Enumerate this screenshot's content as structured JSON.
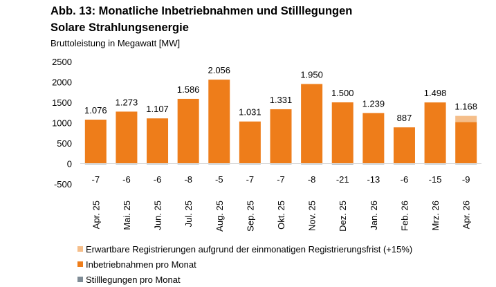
{
  "header": {
    "title_line1": "Abb. 13: Monatliche Inbetriebnahmen und Stilllegungen",
    "title_line2": "Solare Strahlungsenergie",
    "subtitle": "Bruttoleistung in Megawatt [MW]"
  },
  "chart_data": {
    "type": "bar",
    "title": "Abb. 13: Monatliche Inbetriebnahmen und Stilllegungen Solare Strahlungsenergie",
    "ylabel": "Bruttoleistung in Megawatt [MW]",
    "ylim": [
      -500,
      2500
    ],
    "yticks": [
      2500,
      2000,
      1500,
      1000,
      500,
      0,
      -500
    ],
    "grid": false,
    "legend_position": "bottom-left",
    "stacked": true,
    "categories": [
      "Apr. 25",
      "Mai. 25",
      "Jun. 25",
      "Jul. 25",
      "Aug. 25",
      "Sep. 25",
      "Okt. 25",
      "Nov. 25",
      "Dez. 25",
      "Jan. 26",
      "Feb. 26",
      "Mrz. 26",
      "Apr. 26"
    ],
    "series": [
      {
        "name": "Erwartbare Registrierungen aufgrund der einmonatigen Registrierungsfrist (+15%)",
        "color": "#F5BE8A",
        "values": [
          0,
          0,
          0,
          0,
          0,
          0,
          0,
          0,
          0,
          0,
          0,
          0,
          152
        ]
      },
      {
        "name": "Inbetriebnahmen pro Monat",
        "color": "#EE7D1A",
        "values": [
          1076,
          1273,
          1107,
          1586,
          2056,
          1031,
          1331,
          1950,
          1500,
          1239,
          887,
          1498,
          1016
        ]
      },
      {
        "name": "Stilllegungen pro Monat",
        "color": "#7F8C96",
        "values": [
          -7,
          -6,
          -6,
          -8,
          -5,
          -7,
          -7,
          -8,
          -21,
          -13,
          -6,
          -15,
          -9
        ]
      }
    ],
    "top_labels": [
      "1.076",
      "1.273",
      "1.107",
      "1.586",
      "2.056",
      "1.031",
      "1.331",
      "1.950",
      "1.500",
      "1.239",
      "887",
      "1.498",
      "1.168"
    ],
    "bottom_labels": [
      "-7",
      "-6",
      "-6",
      "-8",
      "-5",
      "-7",
      "-7",
      "-8",
      "-21",
      "-13",
      "-6",
      "-15",
      "-9"
    ]
  }
}
